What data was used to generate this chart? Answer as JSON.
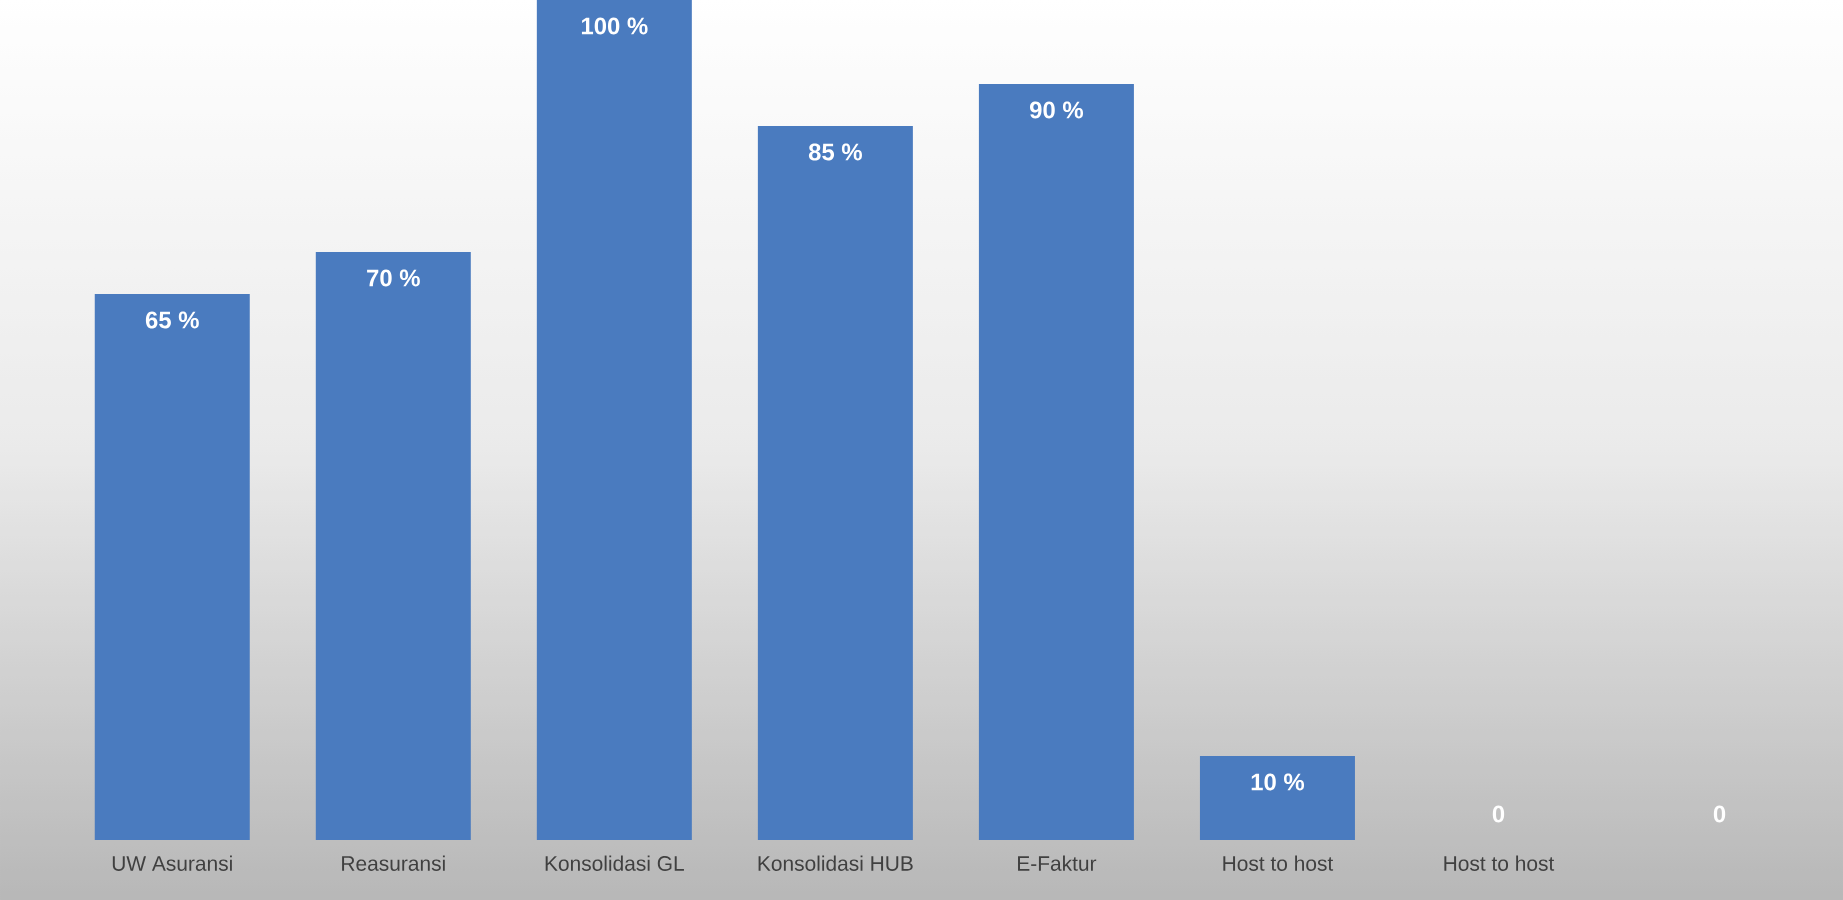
{
  "chart_data": {
    "type": "bar",
    "categories": [
      "UW Asuransi",
      "Reasuransi",
      "Konsolidasi GL",
      "Konsolidasi HUB",
      "E-Faktur",
      "Host to host",
      "Host to host",
      null
    ],
    "values": [
      65,
      70,
      100,
      85,
      90,
      10,
      0,
      0
    ],
    "value_labels": [
      "65 %",
      "70 %",
      "100 %",
      "85 %",
      "90 %",
      "10 %",
      "0",
      "0"
    ],
    "color": "#4a7bbf"
  }
}
